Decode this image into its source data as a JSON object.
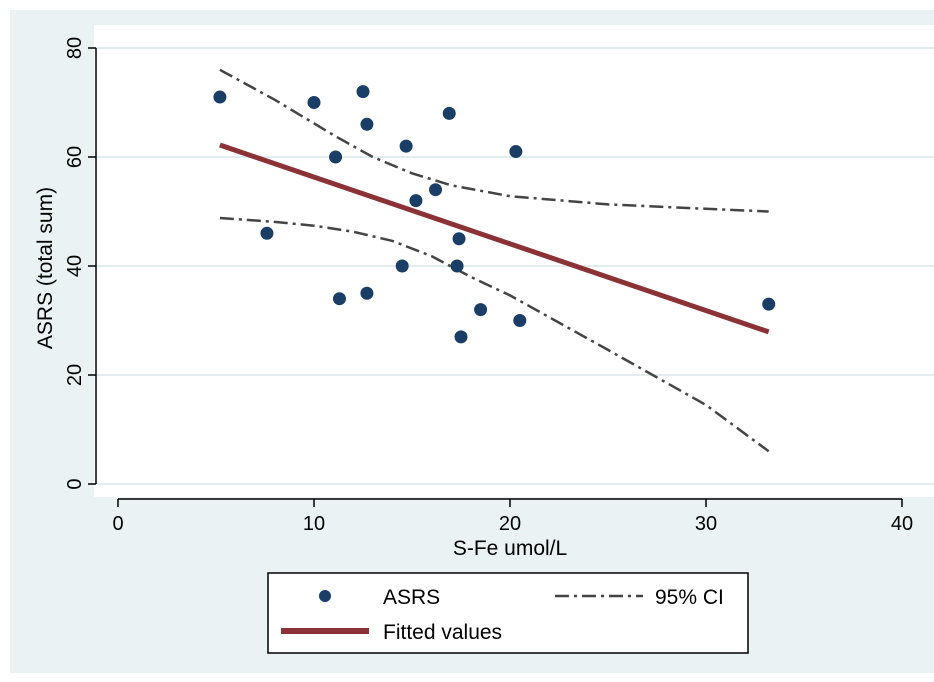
{
  "chart_data": {
    "type": "scatter",
    "xlabel": "S-Fe umol/L",
    "ylabel": "ASRS (total sum)",
    "xlim": [
      0,
      40
    ],
    "ylim": [
      0,
      80
    ],
    "xticks": [
      0,
      10,
      20,
      30,
      40
    ],
    "yticks": [
      0,
      20,
      40,
      60,
      80
    ],
    "grid": "horizontal",
    "legend_position": "bottom",
    "colors": {
      "points": "#1a3e66",
      "fitted": "#8b3236",
      "ci": "#444444",
      "outer_background": "#eaf2f3",
      "plot_background": "#ffffff",
      "grid": "#e3ecee"
    },
    "series": [
      {
        "name": "ASRS",
        "kind": "scatter",
        "points": [
          [
            5.2,
            71
          ],
          [
            7.6,
            46
          ],
          [
            10.0,
            70
          ],
          [
            11.1,
            60
          ],
          [
            11.3,
            34
          ],
          [
            12.5,
            72
          ],
          [
            12.7,
            66
          ],
          [
            12.7,
            35
          ],
          [
            14.5,
            40
          ],
          [
            14.7,
            62
          ],
          [
            15.2,
            52
          ],
          [
            16.2,
            54
          ],
          [
            16.9,
            68
          ],
          [
            17.3,
            40
          ],
          [
            17.4,
            45
          ],
          [
            17.5,
            27
          ],
          [
            18.5,
            32
          ],
          [
            20.3,
            61
          ],
          [
            20.5,
            30
          ],
          [
            33.2,
            33
          ]
        ]
      },
      {
        "name": "Fitted values",
        "kind": "line",
        "points": [
          [
            5.2,
            62.2
          ],
          [
            33.2,
            27.9
          ]
        ]
      },
      {
        "name": "95% CI",
        "kind": "dashdot",
        "upper": [
          [
            5.2,
            76
          ],
          [
            8,
            70.5
          ],
          [
            11,
            64
          ],
          [
            13,
            60
          ],
          [
            15,
            57
          ],
          [
            17,
            54.8
          ],
          [
            20,
            52.8
          ],
          [
            25,
            51.3
          ],
          [
            30,
            50.5
          ],
          [
            33.2,
            50
          ]
        ],
        "lower": [
          [
            5.2,
            48.8
          ],
          [
            8,
            48.1
          ],
          [
            10,
            47.4
          ],
          [
            12,
            46.3
          ],
          [
            14,
            44.6
          ],
          [
            16,
            41.8
          ],
          [
            18,
            38
          ],
          [
            20,
            34.6
          ],
          [
            25,
            24.6
          ],
          [
            30,
            14.5
          ],
          [
            33.2,
            6
          ]
        ]
      }
    ],
    "legend": [
      {
        "label": "ASRS",
        "symbol": "dot"
      },
      {
        "label": "95% CI",
        "symbol": "dashdot"
      },
      {
        "label": "Fitted values",
        "symbol": "line"
      }
    ]
  }
}
